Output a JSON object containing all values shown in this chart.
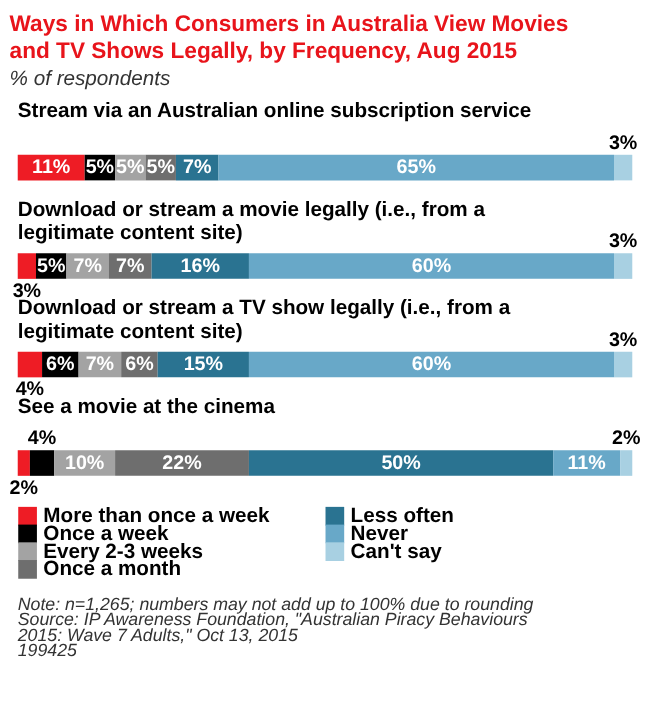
{
  "chart_data": {
    "type": "bar",
    "orientation": "horizontal",
    "stacked": true,
    "title": "Ways in Which Consumers in Australia View Movies and TV Shows Legally, by Frequency, Aug 2015",
    "subtitle": "% of respondents",
    "categories": [
      "Stream via an Australian online subscription service",
      "Download or stream a movie legally (i.e., from a legitimate content site)",
      "Download or stream a TV show legally (i.e., from a legitimate content site)",
      "See a movie at the cinema"
    ],
    "xlim": [
      0,
      101
    ],
    "series": [
      {
        "name": "More than once a week",
        "color": "#ee1c25",
        "values": [
          11,
          3,
          4,
          2
        ],
        "value_labels": [
          "11%",
          "3%",
          "4%",
          "2%"
        ]
      },
      {
        "name": "Once a week",
        "color": "#000000",
        "values": [
          5,
          5,
          6,
          4
        ],
        "value_labels": [
          "5%",
          "5%",
          "6%",
          "4%"
        ]
      },
      {
        "name": "Every 2-3 weeks",
        "color": "#a3a3a3",
        "values": [
          5,
          7,
          7,
          10
        ],
        "value_labels": [
          "5%",
          "7%",
          "7%",
          "10%"
        ]
      },
      {
        "name": "Once a month",
        "color": "#6e6e6e",
        "values": [
          5,
          7,
          6,
          22
        ],
        "value_labels": [
          "5%",
          "7%",
          "6%",
          "22%"
        ]
      },
      {
        "name": "Less often",
        "color": "#2a7391",
        "values": [
          7,
          16,
          15,
          50
        ],
        "value_labels": [
          "7%",
          "16%",
          "15%",
          "50%"
        ]
      },
      {
        "name": "Never",
        "color": "#68a8c8",
        "values": [
          65,
          60,
          60,
          11
        ],
        "value_labels": [
          "65%",
          "60%",
          "60%",
          "11%"
        ]
      },
      {
        "name": "Can't say",
        "color": "#a8d0e2",
        "values": [
          3,
          3,
          3,
          2
        ],
        "value_labels": [
          "3%",
          "3%",
          "3%",
          "2%"
        ]
      }
    ],
    "legend": "bottom",
    "annotations": [
      "Note: n=1,265; numbers may not add up to 100% due to rounding",
      "Source: IP Awareness Foundation, \"Australian Piracy Behaviours 2015: Wave 7 Adults,\" Oct 13, 2015",
      "199425"
    ]
  }
}
